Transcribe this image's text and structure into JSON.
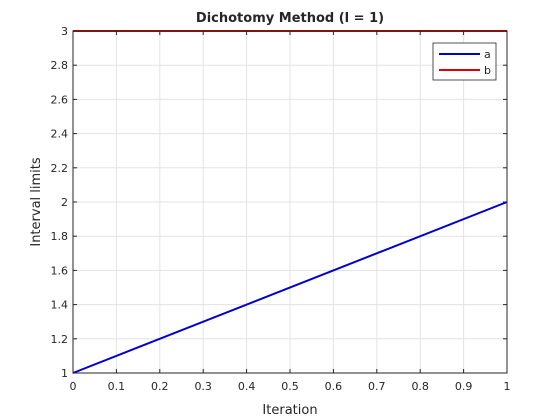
{
  "chart_data": {
    "type": "line",
    "title": "Dichotomy Method (l = 1)",
    "xlabel": "Iteration",
    "ylabel": "Interval limits",
    "xlim": [
      0,
      1
    ],
    "ylim": [
      1,
      3
    ],
    "xticks": [
      0,
      0.1,
      0.2,
      0.3,
      0.4,
      0.5,
      0.6,
      0.7,
      0.8,
      0.9,
      1
    ],
    "xtick_labels": [
      "0",
      "0.1",
      "0.2",
      "0.3",
      "0.4",
      "0.5",
      "0.6",
      "0.7",
      "0.8",
      "0.9",
      "1"
    ],
    "yticks": [
      1,
      1.2,
      1.4,
      1.6,
      1.8,
      2,
      2.2,
      2.4,
      2.6,
      2.8,
      3
    ],
    "ytick_labels": [
      "1",
      "1.2",
      "1.4",
      "1.6",
      "1.8",
      "2",
      "2.2",
      "2.4",
      "2.6",
      "2.8",
      "3"
    ],
    "grid": true,
    "legend_position": "top-right",
    "series": [
      {
        "name": "a",
        "color": "#0000cc",
        "x": [
          0,
          1
        ],
        "y": [
          1,
          2
        ]
      },
      {
        "name": "b",
        "color": "#dd0000",
        "x": [
          0,
          1
        ],
        "y": [
          3,
          3
        ]
      }
    ]
  }
}
